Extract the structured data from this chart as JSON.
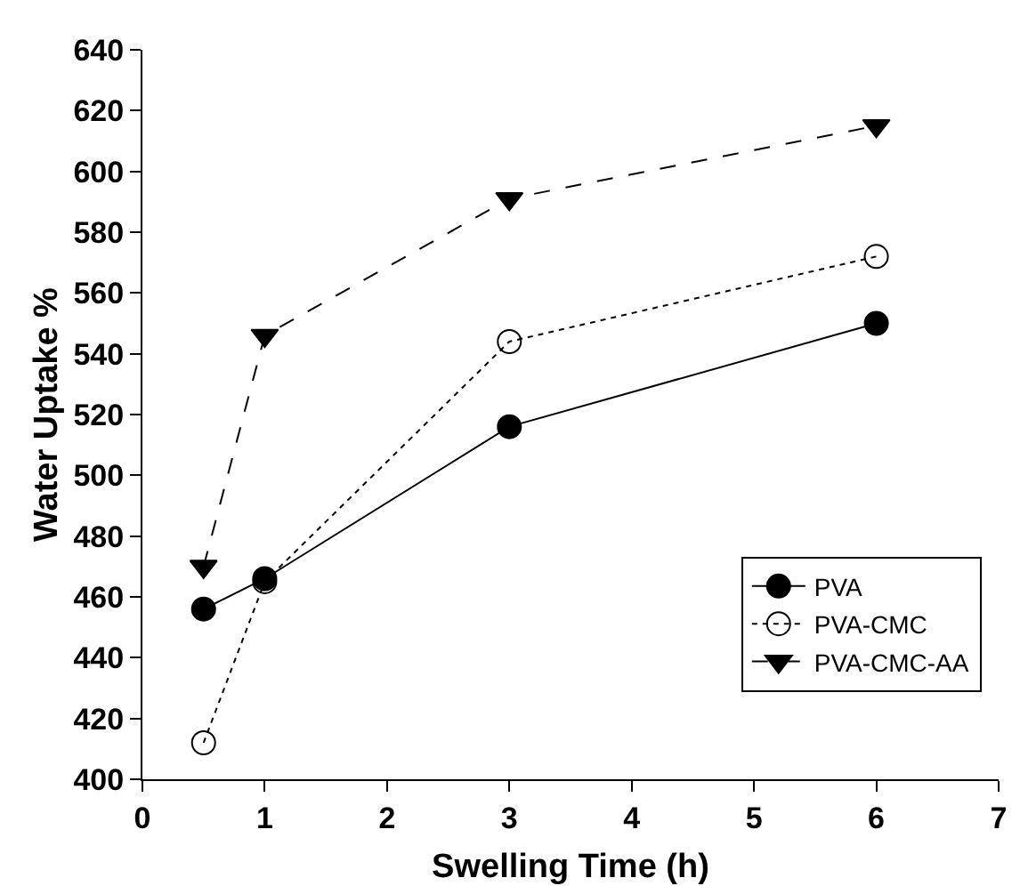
{
  "chart_data": {
    "type": "line",
    "xlabel": "Swelling Time (h)",
    "ylabel": "Water Uptake %",
    "x": [
      0.5,
      1,
      3,
      6
    ],
    "series": [
      {
        "name": "PVA",
        "color": "#000000",
        "values": [
          456,
          466,
          516,
          550
        ],
        "marker": "circle",
        "line_style": "solid"
      },
      {
        "name": "PVA-CMC",
        "color": "#000000",
        "values": [
          412,
          465,
          544,
          572
        ],
        "marker": "circle-open",
        "line_style": "dotted"
      },
      {
        "name": "PVA-CMC-AA",
        "color": "#000000",
        "values": [
          470,
          546,
          591,
          615
        ],
        "marker": "triangle-down",
        "line_style": "dashed"
      }
    ],
    "xlim": [
      0,
      7
    ],
    "xticks": [
      0,
      1,
      2,
      3,
      4,
      5,
      6,
      7
    ],
    "ylim": [
      400,
      640
    ],
    "yticks": [
      400,
      420,
      440,
      460,
      480,
      500,
      520,
      540,
      560,
      580,
      600,
      620,
      640
    ],
    "grid": false,
    "legend": "bottom right"
  }
}
